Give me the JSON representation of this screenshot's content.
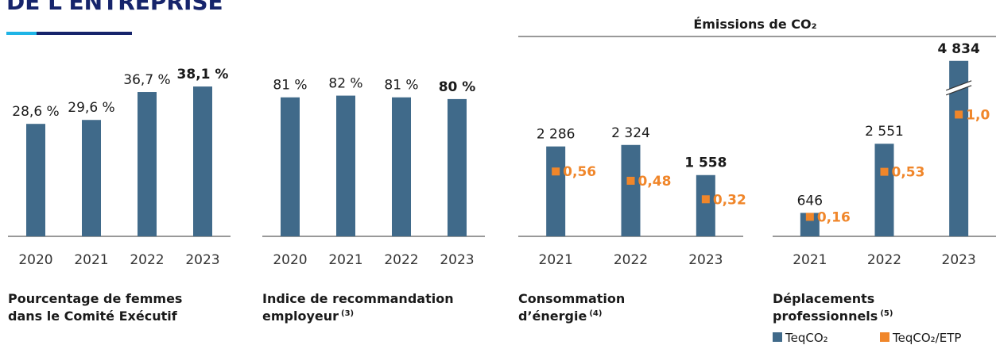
{
  "header": {
    "title": "DE L'ENTREPRISE",
    "group_title": "Émissions de CO₂"
  },
  "chart_data": [
    {
      "type": "bar",
      "title": [
        "Pourcentage de femmes",
        "dans le Comité Exécutif"
      ],
      "categories": [
        "2020",
        "2021",
        "2022",
        "2023"
      ],
      "values": [
        28.6,
        29.6,
        36.7,
        38.1
      ],
      "value_labels": [
        "28,6 %",
        "29,6 %",
        "36,7 %",
        "38,1 %"
      ],
      "color": "#406a8a",
      "ylim": [
        0,
        48
      ]
    },
    {
      "type": "bar",
      "title": [
        "Indice de recommandation",
        "employeur"
      ],
      "title_note": "(3)",
      "categories": [
        "2020",
        "2021",
        "2022",
        "2023"
      ],
      "values": [
        81,
        82,
        81,
        80
      ],
      "value_labels": [
        "81 %",
        "82 %",
        "81 %",
        "80 %"
      ],
      "color": "#406a8a",
      "ylim": [
        0,
        110
      ]
    },
    {
      "type": "bar",
      "title": [
        "Consommation",
        "d’énergie"
      ],
      "title_note": "(4)",
      "categories": [
        "2021",
        "2022",
        "2023"
      ],
      "series": [
        {
          "name": "TeqCO₂",
          "color": "#406a8a",
          "values": [
            2286,
            2324,
            1558
          ],
          "value_labels": [
            "2 286",
            "2 324",
            "1 558"
          ]
        },
        {
          "name": "TeqCO₂/ETP",
          "color": "#f0862a",
          "axis": "y2",
          "values": [
            0.56,
            0.48,
            0.32
          ],
          "value_labels": [
            "0,56",
            "0,48",
            "0,32"
          ]
        }
      ],
      "ylim": [
        0,
        4800
      ],
      "y2lim": [
        0,
        1.63
      ]
    },
    {
      "type": "bar",
      "title": [
        "Déplacements",
        "professionnels"
      ],
      "title_note": "(5)",
      "categories": [
        "2021",
        "2022",
        "2023"
      ],
      "series": [
        {
          "name": "TeqCO₂",
          "color": "#406a8a",
          "values": [
            646,
            2551,
            4834
          ],
          "value_labels": [
            "646",
            "2 551",
            "4 834"
          ]
        },
        {
          "name": "TeqCO₂/ETP",
          "color": "#f0862a",
          "axis": "y2",
          "values": [
            0.16,
            0.53,
            1.0
          ],
          "value_labels": [
            "0,16",
            "0,53",
            "1,0"
          ]
        }
      ],
      "ylim": [
        0,
        5200
      ],
      "y2lim": [
        0,
        1.55
      ],
      "axis_break": true,
      "legend": "bottom"
    }
  ]
}
